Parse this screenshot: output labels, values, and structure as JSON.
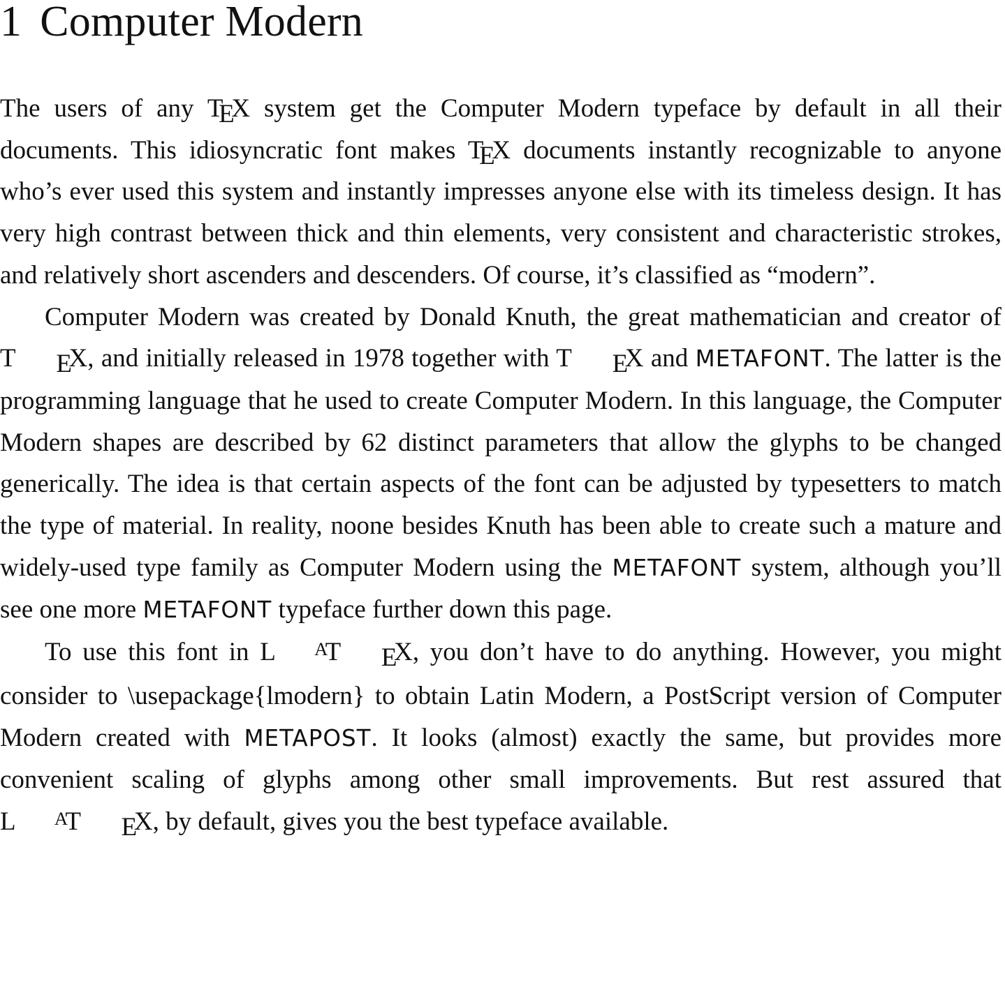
{
  "section": {
    "number": "1",
    "title": "Computer Modern"
  },
  "logos": {
    "tex_t": "T",
    "tex_e": "E",
    "tex_x": "X",
    "latex_l": "L",
    "latex_a": "A"
  },
  "paragraphs": [
    {
      "s1": "The users of any ",
      "s2": " system get the Computer Modern typeface by default in all their documents. This idiosyncratic font makes ",
      "s3": " documents instantly recognizable to anyone who’s ever used this system and instantly impresses any­one else with its timeless design. It has very high contrast between thick and thin elements, very consistent and characteristic strokes, and relatively short ascenders and descenders. Of course, it’s classified as “modern”."
    },
    {
      "s1": "Computer Modern was created by Donald Knuth, the great mathematician and creator of ",
      "s2": ", and initially released in 1978 together with ",
      "s3": " and ",
      "mf1": "META­FONT",
      "s4": ". The latter is the programming language that he used to create Computer Modern. In this language, the Computer Modern shapes are described by 62 distinct parameters that allow the glyphs to be changed generically. The idea is that certain aspects of the font can be adjusted by typesetters to match the type of material. In reality, noone besides Knuth has been able to create such a mature and widely-used type family as Computer Modern using the ",
      "mf2": "META­FONT",
      "s5": " system, although you’ll see one more ",
      "mf3": "METAFONT",
      "s6": " typeface further down this page."
    },
    {
      "s1": "To use this font in ",
      "s2": ", you don’t have to do anything. However, you might consider to \\usepackage{lmodern} to obtain Latin Modern, a PostScript version of Computer Modern created with ",
      "mp": "METAPOST",
      "s3": ". It looks (almost) exactly the same, but provides more convenient scaling of glyphs among other small im­provements. But rest assured that ",
      "s4": ", by default, gives you the best typeface available."
    }
  ]
}
